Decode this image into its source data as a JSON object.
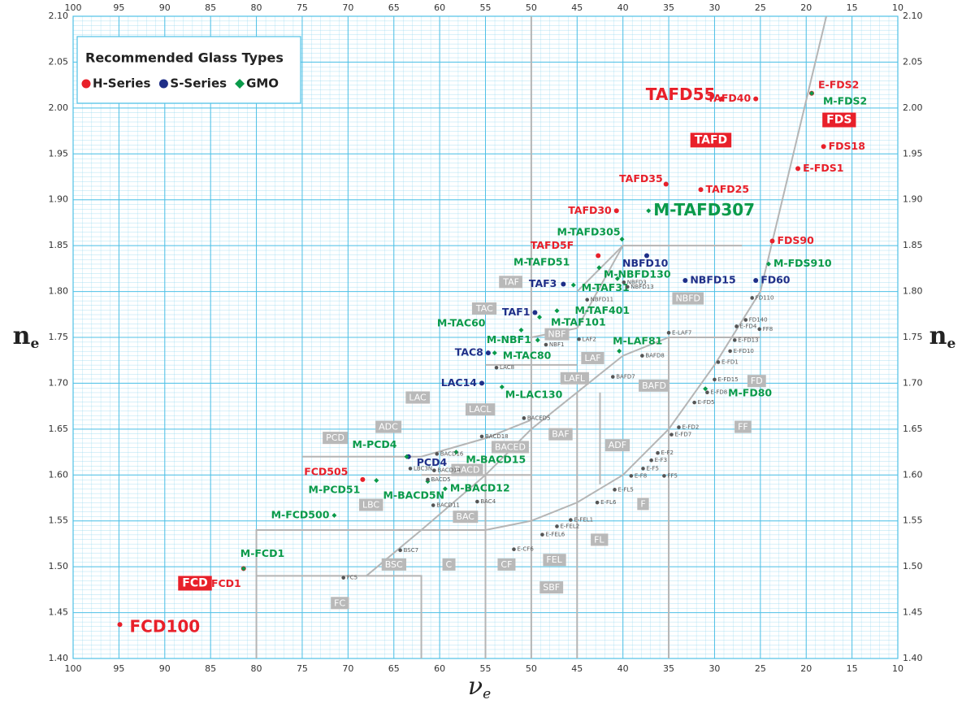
{
  "chart_data": {
    "type": "scatter",
    "xlabel": {
      "main": "ν",
      "sub": "e"
    },
    "ylabel": {
      "main": "n",
      "sub": "e"
    },
    "xlim": [
      100,
      10
    ],
    "ylim": [
      1.4,
      2.1
    ],
    "xticks": [
      100,
      95,
      90,
      85,
      80,
      75,
      70,
      65,
      60,
      55,
      50,
      45,
      40,
      35,
      30,
      25,
      20,
      15,
      10
    ],
    "yticks": [
      {
        "value": 1.4,
        "label": "1.40"
      },
      {
        "value": 1.45,
        "label": "1.45"
      },
      {
        "value": 1.5,
        "label": "1.50"
      },
      {
        "value": 1.55,
        "label": "1.55"
      },
      {
        "value": 1.6,
        "label": "1.60"
      },
      {
        "value": 1.65,
        "label": "1.65"
      },
      {
        "value": 1.7,
        "label": "1.70"
      },
      {
        "value": 1.75,
        "label": "1.75"
      },
      {
        "value": 1.8,
        "label": "1.80"
      },
      {
        "value": 1.85,
        "label": "1.85"
      },
      {
        "value": 1.9,
        "label": "1.90"
      },
      {
        "value": 1.95,
        "label": "1.95"
      },
      {
        "value": 2.0,
        "label": "2.00"
      },
      {
        "value": 2.05,
        "label": "2.05"
      },
      {
        "value": 2.1,
        "label": "2.10"
      }
    ],
    "grid": true,
    "legend": {
      "title": "Recommended Glass Types",
      "position": "upper left"
    },
    "series": [
      {
        "name": "H-Series",
        "color": "#e8202a",
        "marker": "circle",
        "labels": [
          "TAFD55",
          "TAFD40",
          "E-FDS2",
          "FDS18",
          "E-FDS1",
          "TAFD35",
          "TAFD25",
          "TAFD30",
          "FDS90",
          "TAFD5F",
          "FCD505",
          "FCD1",
          "FCD100"
        ],
        "x": [
          29.2,
          25.5,
          19.4,
          18.1,
          20.9,
          35.3,
          31.5,
          40.7,
          23.7,
          42.7,
          68.4,
          81.4,
          94.9
        ],
        "values": [
          2.01,
          2.01,
          2.016,
          1.958,
          1.934,
          1.917,
          1.911,
          1.888,
          1.855,
          1.839,
          1.595,
          1.498,
          1.437
        ]
      },
      {
        "name": "S-Series",
        "color": "#1f2f88",
        "marker": "circle",
        "labels": [
          "NBFD10",
          "NBFD15",
          "FD60",
          "TAF3",
          "TAF1",
          "TAC8",
          "LAC14",
          "PCD4"
        ],
        "x": [
          37.4,
          33.2,
          25.5,
          46.5,
          49.6,
          54.7,
          55.4,
          63.4
        ],
        "values": [
          1.839,
          1.812,
          1.812,
          1.808,
          1.777,
          1.733,
          1.7,
          1.62
        ]
      },
      {
        "name": "GMO",
        "color": "#0a9a4a",
        "marker": "diamond",
        "labels": [
          "M-TAFD307",
          "M-TAFD305",
          "M-TAFD51",
          "M-NBFD130",
          "M-FDS910",
          "M-TAF31",
          "M-TAF401",
          "M-TAF101",
          "M-TAC60",
          "M-NBF1",
          "M-LAF81",
          "M-TAC80",
          "M-LAC130",
          "M-FD80",
          "M-PCD4",
          "M-BACD15",
          "M-PCD51",
          "M-BACD5N",
          "M-BACD12",
          "M-FCD500",
          "M-FCD1",
          "M-FDS2"
        ],
        "x": [
          37.2,
          40.1,
          42.6,
          40.6,
          24.1,
          45.4,
          47.2,
          49.1,
          51.1,
          49.3,
          40.4,
          54.0,
          53.2,
          31.0,
          63.6,
          58.2,
          66.9,
          61.3,
          59.4,
          71.5,
          81.4,
          19.4
        ],
        "values": [
          1.888,
          1.857,
          1.826,
          1.814,
          1.83,
          1.807,
          1.779,
          1.772,
          1.758,
          1.747,
          1.735,
          1.733,
          1.696,
          1.694,
          1.62,
          1.625,
          1.594,
          1.593,
          1.585,
          1.556,
          1.498,
          2.016
        ]
      }
    ],
    "unlisted_points": {
      "color": "#555555",
      "labels": [
        "NBFD3",
        "NBFD13",
        "NBFD11",
        "FD110",
        "FD140",
        "FF8",
        "E-FD4",
        "E-LAF7",
        "E-FD13",
        "LAF2",
        "NBF1",
        "E-FD10",
        "BAFD8",
        "E-FD1",
        "LAC8",
        "BAFD7",
        "E-FD15",
        "E-FD8",
        "E-FD5",
        "BACED5",
        "E-FD2",
        "E-FD7",
        "BACD18",
        "BACD16",
        "E-F2",
        "E-F3",
        "LBC3N",
        "E-F5",
        "BACD14",
        "E-F8",
        "FF5",
        "BACD5",
        "E-FL5",
        "BAC4",
        "BACD11",
        "E-FL6",
        "E-FEL1",
        "E-FEL2",
        "E-FEL6",
        "E-CF6",
        "BSC7",
        "FC5"
      ],
      "x": [
        39.9,
        39.5,
        43.9,
        25.9,
        26.6,
        25.1,
        27.6,
        35.0,
        27.8,
        44.8,
        48.4,
        28.3,
        37.9,
        29.6,
        53.8,
        41.1,
        30.0,
        30.8,
        32.2,
        50.8,
        33.9,
        34.7,
        55.4,
        60.3,
        36.2,
        36.9,
        63.2,
        37.8,
        60.6,
        39.1,
        35.5,
        61.3,
        40.9,
        55.9,
        60.7,
        42.8,
        45.7,
        47.2,
        48.8,
        51.9,
        64.3,
        70.5
      ],
      "values": [
        1.81,
        1.805,
        1.791,
        1.793,
        1.769,
        1.759,
        1.762,
        1.755,
        1.747,
        1.748,
        1.742,
        1.735,
        1.73,
        1.723,
        1.717,
        1.707,
        1.704,
        1.69,
        1.679,
        1.662,
        1.652,
        1.644,
        1.642,
        1.623,
        1.624,
        1.616,
        1.607,
        1.607,
        1.605,
        1.599,
        1.599,
        1.595,
        1.584,
        1.571,
        1.567,
        1.57,
        1.551,
        1.544,
        1.535,
        1.519,
        1.518,
        1.488
      ]
    },
    "regions": {
      "color": "#b9b9b9",
      "labels": [
        "TAF",
        "TAC",
        "NBF",
        "LAF",
        "LAFL",
        "BAFD",
        "NBFD",
        "FD",
        "FF",
        "LAC",
        "LACL",
        "ADC",
        "PCD",
        "BACED",
        "BAF",
        "ADF",
        "BACD",
        "LBC",
        "BAC",
        "F",
        "FL",
        "BSC",
        "C",
        "CF",
        "FEL",
        "SBF",
        "FC"
      ],
      "x": [
        52.2,
        55.1,
        47.2,
        43.3,
        45.3,
        36.6,
        32.9,
        25.4,
        26.9,
        62.4,
        55.6,
        65.6,
        71.4,
        52.3,
        46.8,
        40.6,
        57.0,
        67.5,
        57.2,
        37.8,
        42.6,
        65.0,
        59.0,
        52.7,
        47.5,
        47.8,
        70.9
      ],
      "values": [
        1.81,
        1.781,
        1.753,
        1.727,
        1.705,
        1.697,
        1.792,
        1.702,
        1.652,
        1.684,
        1.671,
        1.652,
        1.64,
        1.63,
        1.644,
        1.632,
        1.605,
        1.567,
        1.554,
        1.568,
        1.529,
        1.502,
        1.502,
        1.502,
        1.507,
        1.477,
        1.46
      ]
    },
    "highlight_regions": {
      "color": "#e8202a",
      "labels": [
        "TAFD",
        "FDS",
        "FCD"
      ],
      "x": [
        30.4,
        16.4,
        86.7
      ],
      "values": [
        1.965,
        1.987,
        1.482
      ]
    },
    "boundaries": {
      "color": "#b5b5b5",
      "lines": [
        [
          [
            17.8,
            2.1
          ],
          [
            25.0,
            1.8
          ],
          [
            30.0,
            1.72
          ],
          [
            35.0,
            1.65
          ],
          [
            38.0,
            1.62
          ],
          [
            40.0,
            1.6
          ],
          [
            45.0,
            1.57
          ],
          [
            50.0,
            1.55
          ],
          [
            55.0,
            1.54
          ],
          [
            80.0,
            1.54
          ],
          [
            80.0,
            1.4
          ]
        ],
        [
          [
            80.0,
            1.49
          ],
          [
            62.0,
            1.49
          ],
          [
            62.0,
            1.4
          ]
        ],
        [
          [
            68.0,
            1.49
          ],
          [
            62.0,
            1.54
          ],
          [
            55.0,
            1.6
          ],
          [
            50.0,
            1.65
          ],
          [
            45.0,
            1.69
          ],
          [
            40.0,
            1.73
          ],
          [
            35.0,
            1.75
          ],
          [
            25.0,
            1.75
          ]
        ],
        [
          [
            75.0,
            1.62
          ],
          [
            62.0,
            1.62
          ],
          [
            55.0,
            1.64
          ],
          [
            50.0,
            1.66
          ]
        ],
        [
          [
            45.0,
            1.8
          ],
          [
            40.0,
            1.85
          ],
          [
            27.0,
            1.85
          ]
        ],
        [
          [
            55.0,
            1.72
          ],
          [
            45.0,
            1.72
          ]
        ],
        [
          [
            50.0,
            1.75
          ],
          [
            45.0,
            1.76
          ],
          [
            40.0,
            1.85
          ]
        ],
        [
          [
            55.0,
            1.62
          ],
          [
            55.0,
            1.4
          ]
        ],
        [
          [
            45.0,
            1.69
          ],
          [
            45.0,
            1.4
          ]
        ],
        [
          [
            35.0,
            1.75
          ],
          [
            35.0,
            1.4
          ]
        ],
        [
          [
            42.5,
            1.69
          ],
          [
            42.5,
            1.59
          ]
        ],
        [
          [
            50.0,
            2.1
          ],
          [
            50.0,
            1.4
          ]
        ],
        [
          [
            62.0,
            1.6
          ],
          [
            50.0,
            1.6
          ]
        ]
      ]
    }
  }
}
